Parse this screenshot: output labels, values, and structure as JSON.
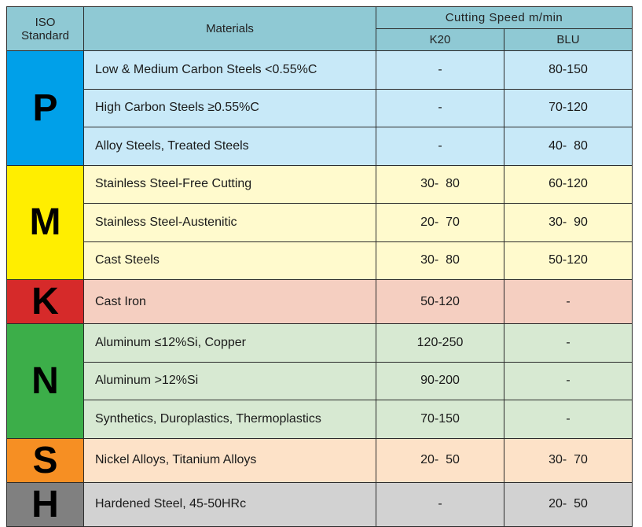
{
  "header": {
    "iso_standard": "ISO\nStandard",
    "materials": "Materials",
    "cutting_speed": "Cutting Speed m/min",
    "col_k20": "K20",
    "col_blu": "BLU"
  },
  "colors": {
    "header_bg": "#8fc9d4",
    "P": {
      "letter_bg": "#00a0e9",
      "row_bg": "#c8e9f8"
    },
    "M": {
      "letter_bg": "#ffee00",
      "row_bg": "#fffacd"
    },
    "K": {
      "letter_bg": "#d62a2a",
      "row_bg": "#f5cfc1"
    },
    "N": {
      "letter_bg": "#3cae49",
      "row_bg": "#d7e9d2"
    },
    "S": {
      "letter_bg": "#f68f23",
      "row_bg": "#fde2c8"
    },
    "H": {
      "letter_bg": "#808080",
      "row_bg": "#d2d2d2"
    }
  },
  "groups": [
    {
      "iso": "P",
      "rows": [
        {
          "material": "Low & Medium Carbon Steels <0.55%C",
          "k20": "-",
          "blu": "80-150"
        },
        {
          "material": "High Carbon Steels ≥0.55%C",
          "k20": "-",
          "blu": "70-120"
        },
        {
          "material": "Alloy Steels, Treated Steels",
          "k20": "-",
          "blu": "40-  80"
        }
      ]
    },
    {
      "iso": "M",
      "rows": [
        {
          "material": "Stainless Steel-Free Cutting",
          "k20": "30-  80",
          "blu": "60-120"
        },
        {
          "material": "Stainless Steel-Austenitic",
          "k20": "20-  70",
          "blu": "30-  90"
        },
        {
          "material": "Cast Steels",
          "k20": "30-  80",
          "blu": "50-120"
        }
      ]
    },
    {
      "iso": "K",
      "rows": [
        {
          "material": "Cast Iron",
          "k20": "50-120",
          "blu": "-"
        }
      ]
    },
    {
      "iso": "N",
      "rows": [
        {
          "material": "Aluminum ≤12%Si, Copper",
          "k20": "120-250",
          "blu": "-"
        },
        {
          "material": "Aluminum >12%Si",
          "k20": "90-200",
          "blu": "-"
        },
        {
          "material": "Synthetics, Duroplastics, Thermoplastics",
          "k20": "70-150",
          "blu": "-"
        }
      ]
    },
    {
      "iso": "S",
      "rows": [
        {
          "material": "Nickel Alloys, Titanium Alloys",
          "k20": "20-  50",
          "blu": "30-  70"
        }
      ]
    },
    {
      "iso": "H",
      "rows": [
        {
          "material": "Hardened Steel, 45-50HRc",
          "k20": "-",
          "blu": "20-  50"
        }
      ]
    }
  ]
}
